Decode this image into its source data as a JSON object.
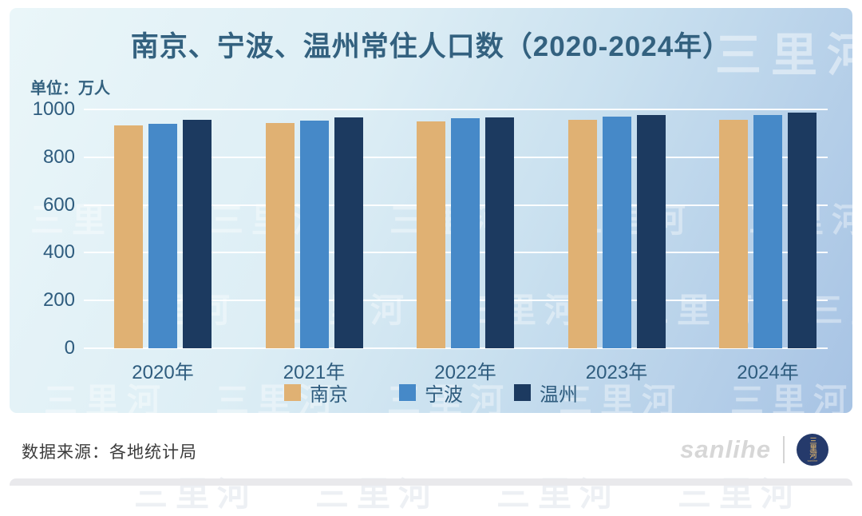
{
  "chart_data": {
    "type": "bar",
    "title": "南京、宁波、温州常住人口数（2020-2024年）",
    "unit_label": "单位：万人",
    "ylabel": "万人",
    "xlabel": "",
    "ylim": [
      0,
      1000
    ],
    "yticks": [
      0,
      200,
      400,
      600,
      800,
      1000
    ],
    "grid": true,
    "legend_position": "bottom",
    "categories": [
      "2020年",
      "2021年",
      "2022年",
      "2023年",
      "2024年"
    ],
    "series": [
      {
        "name": "南京",
        "color": "#E0B173",
        "values": [
          932,
          942,
          949,
          955,
          958
        ]
      },
      {
        "name": "宁波",
        "color": "#4689C8",
        "values": [
          940,
          954,
          962,
          970,
          978
        ]
      },
      {
        "name": "温州",
        "color": "#1C3A60",
        "values": [
          957,
          965,
          968,
          976,
          985
        ]
      }
    ]
  },
  "watermark": {
    "text": "三里河"
  },
  "footer": {
    "source": "数据来源：各地统计局",
    "brand": "sanlihe",
    "logo_text": "三里河",
    "logo_subtext": "sanlihe"
  },
  "colors": {
    "title_text": "#33617F",
    "axis_text": "#2E5C7E",
    "card_gradient_start": "#EAF6F9",
    "card_gradient_end": "#A7C3E4",
    "gridline": "#FFFFFF",
    "source_text": "#3C3C3C",
    "brand_text": "#D7D7D7",
    "logo_background": "#253A6B",
    "logo_text_color": "#C9A66B",
    "bottom_strip": "#E9E9EC"
  }
}
